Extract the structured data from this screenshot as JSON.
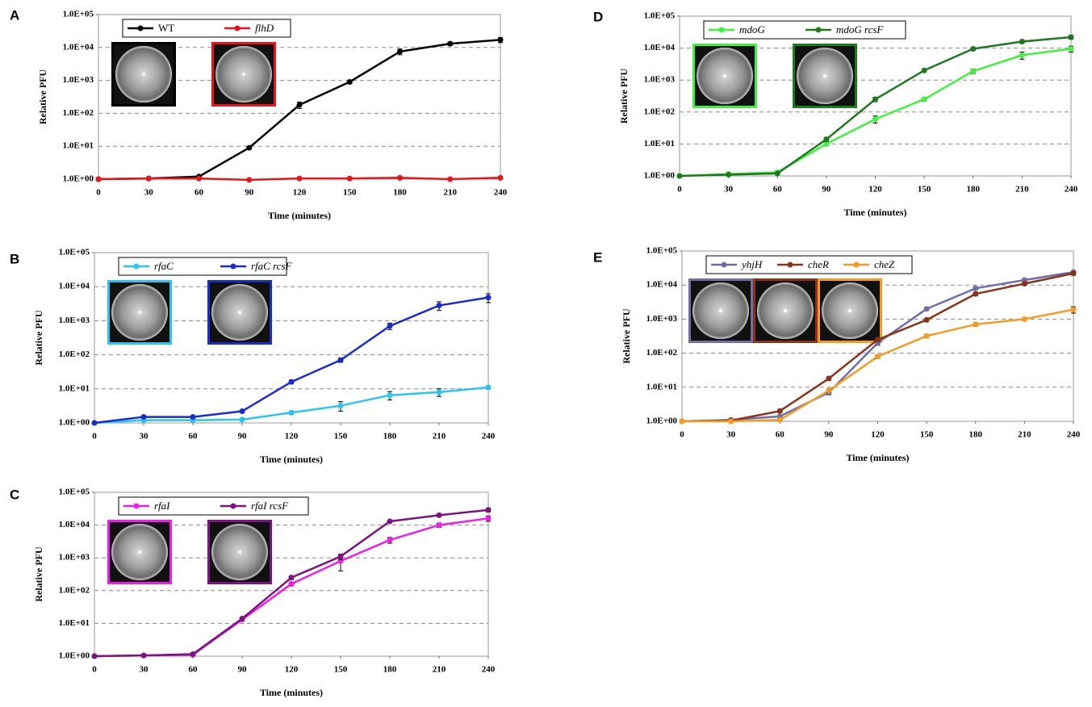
{
  "chart_data": [
    {
      "type": "line",
      "panel": "A",
      "xlabel": "Time (minutes)",
      "ylabel": "Relative PFU",
      "log_y": true,
      "grid": true,
      "x": [
        0,
        30,
        60,
        90,
        120,
        150,
        180,
        210,
        240
      ],
      "xlim": [
        0,
        240
      ],
      "xticks": [
        0,
        30,
        60,
        90,
        120,
        150,
        180,
        210,
        240
      ],
      "ylim": [
        1,
        100000
      ],
      "yticks": [
        {
          "value": 1,
          "label": "1.0E+00"
        },
        {
          "value": 10,
          "label": "1.0E+01"
        },
        {
          "value": 100,
          "label": "1.0E+02"
        },
        {
          "value": 1000,
          "label": "1.0E+03"
        },
        {
          "value": 10000,
          "label": "1.0E+04"
        },
        {
          "value": 100000,
          "label": "1.0E+05"
        }
      ],
      "series": [
        {
          "name": "WT",
          "color": "#000000",
          "values": [
            1,
            1.05,
            1.2,
            9,
            180,
            900,
            7500,
            13000,
            17000
          ],
          "errors": [
            0,
            0.05,
            0.05,
            0.8,
            40,
            100,
            1500,
            1500,
            3000
          ]
        },
        {
          "name": "flhD",
          "color": "#e8141c",
          "values": [
            1,
            1.05,
            1.05,
            0.95,
            1.05,
            1.05,
            1.1,
            1.0,
            1.1
          ],
          "errors": [
            0,
            0.05,
            0.05,
            0.05,
            0.05,
            0.05,
            0.1,
            0.05,
            0.1
          ]
        }
      ]
    },
    {
      "type": "line",
      "panel": "B",
      "xlabel": "Time (minutes)",
      "ylabel": "Relative PFU",
      "log_y": true,
      "grid": true,
      "x": [
        0,
        30,
        60,
        90,
        120,
        150,
        180,
        210,
        240
      ],
      "xlim": [
        0,
        240
      ],
      "xticks": [
        0,
        30,
        60,
        90,
        120,
        150,
        180,
        210,
        240
      ],
      "ylim": [
        1,
        100000
      ],
      "yticks": [
        {
          "value": 1,
          "label": "1.0E+00"
        },
        {
          "value": 10,
          "label": "1.0E+01"
        },
        {
          "value": 100,
          "label": "1.0E+02"
        },
        {
          "value": 1000,
          "label": "1.0E+03"
        },
        {
          "value": 10000,
          "label": "1.0E+04"
        },
        {
          "value": 100000,
          "label": "1.0E+05"
        }
      ],
      "series": [
        {
          "name": "rfaC",
          "color": "#29c5f0",
          "values": [
            1,
            1.2,
            1.2,
            1.25,
            2,
            3.2,
            6.5,
            8,
            11
          ],
          "errors": [
            0,
            0.1,
            0.1,
            0.1,
            0.2,
            1,
            1.8,
            2,
            1
          ]
        },
        {
          "name": "rfaC rcsF",
          "color": "#1a2bd1",
          "values": [
            1,
            1.5,
            1.5,
            2.2,
            16,
            70,
            700,
            2800,
            4800
          ],
          "errors": [
            0,
            0.1,
            0.1,
            0.2,
            2,
            10,
            150,
            800,
            1400
          ]
        }
      ]
    },
    {
      "type": "line",
      "panel": "C",
      "xlabel": "Time (minutes)",
      "ylabel": "Relative PFU",
      "log_y": true,
      "grid": true,
      "x": [
        0,
        30,
        60,
        90,
        120,
        150,
        180,
        210,
        240
      ],
      "xlim": [
        0,
        240
      ],
      "xticks": [
        0,
        30,
        60,
        90,
        120,
        150,
        180,
        210,
        240
      ],
      "ylim": [
        1,
        100000
      ],
      "yticks": [
        {
          "value": 1,
          "label": "1.0E+00"
        },
        {
          "value": 10,
          "label": "1.0E+01"
        },
        {
          "value": 100,
          "label": "1.0E+02"
        },
        {
          "value": 1000,
          "label": "1.0E+03"
        },
        {
          "value": 10000,
          "label": "1.0E+04"
        },
        {
          "value": 100000,
          "label": "1.0E+05"
        }
      ],
      "series": [
        {
          "name": "rfaI",
          "color": "#ee1ee8",
          "values": [
            1,
            1.05,
            1.1,
            13,
            160,
            800,
            3500,
            10000,
            16000
          ],
          "errors": [
            0,
            0.05,
            0.05,
            1,
            20,
            400,
            700,
            1500,
            3000
          ]
        },
        {
          "name": "rfaI rcsF",
          "color": "#7b1480",
          "values": [
            1,
            1.05,
            1.15,
            14,
            250,
            1100,
            13000,
            20000,
            29000
          ],
          "errors": [
            0,
            0.05,
            0.05,
            1,
            30,
            200,
            1000,
            2000,
            4000
          ]
        }
      ]
    },
    {
      "type": "line",
      "panel": "D",
      "xlabel": "Time (minutes)",
      "ylabel": "Relative PFU",
      "log_y": true,
      "grid": true,
      "x": [
        0,
        30,
        60,
        90,
        120,
        150,
        180,
        210,
        240
      ],
      "xlim": [
        0,
        240
      ],
      "xticks": [
        0,
        30,
        60,
        90,
        120,
        150,
        180,
        210,
        240
      ],
      "ylim": [
        1,
        100000
      ],
      "yticks": [
        {
          "value": 1,
          "label": "1.0E+00"
        },
        {
          "value": 10,
          "label": "1.0E+01"
        },
        {
          "value": 100,
          "label": "1.0E+02"
        },
        {
          "value": 1000,
          "label": "1.0E+03"
        },
        {
          "value": 10000,
          "label": "1.0E+04"
        },
        {
          "value": 100000,
          "label": "1.0E+05"
        }
      ],
      "series": [
        {
          "name": "mdoG",
          "color": "#3ef23e",
          "values": [
            1,
            1.15,
            1.3,
            10,
            60,
            250,
            1900,
            6000,
            9500
          ],
          "errors": [
            0,
            0.1,
            0.1,
            1,
            15,
            30,
            300,
            1500,
            2000
          ]
        },
        {
          "name": "mdoG rcsF",
          "color": "#1f7a1f",
          "values": [
            1,
            1.1,
            1.2,
            14,
            250,
            2000,
            9500,
            16000,
            22000
          ],
          "errors": [
            0,
            0.05,
            0.1,
            2,
            40,
            200,
            1000,
            2000,
            3000
          ]
        }
      ]
    },
    {
      "type": "line",
      "panel": "E",
      "xlabel": "Time (minutes)",
      "ylabel": "Relative PFU",
      "log_y": true,
      "grid": true,
      "x": [
        0,
        30,
        60,
        90,
        120,
        150,
        180,
        210,
        240
      ],
      "xlim": [
        0,
        240
      ],
      "xticks": [
        0,
        30,
        60,
        90,
        120,
        150,
        180,
        210,
        240
      ],
      "ylim": [
        1,
        100000
      ],
      "yticks": [
        {
          "value": 1,
          "label": "1.0E+00"
        },
        {
          "value": 10,
          "label": "1.0E+01"
        },
        {
          "value": 100,
          "label": "1.0E+02"
        },
        {
          "value": 1000,
          "label": "1.0E+03"
        },
        {
          "value": 10000,
          "label": "1.0E+04"
        },
        {
          "value": 100000,
          "label": "1.0E+05"
        }
      ],
      "series": [
        {
          "name": "yhjH",
          "color": "#6f6fa8",
          "values": [
            1,
            1.1,
            1.4,
            7,
            200,
            2000,
            8000,
            14000,
            24000
          ],
          "errors": [
            0,
            0.05,
            0.1,
            1,
            30,
            200,
            800,
            1500,
            2000
          ]
        },
        {
          "name": "cheR",
          "color": "#8b3218",
          "values": [
            1,
            1.05,
            2,
            18,
            250,
            950,
            5500,
            11000,
            22000
          ],
          "errors": [
            0,
            0.05,
            0.2,
            2,
            30,
            100,
            600,
            1200,
            2500
          ]
        },
        {
          "name": "cheZ",
          "color": "#f59b22",
          "values": [
            1,
            1,
            1.1,
            8,
            80,
            320,
            700,
            1000,
            1900
          ],
          "errors": [
            0,
            0.05,
            0.1,
            1,
            10,
            30,
            80,
            100,
            400
          ]
        }
      ]
    }
  ]
}
